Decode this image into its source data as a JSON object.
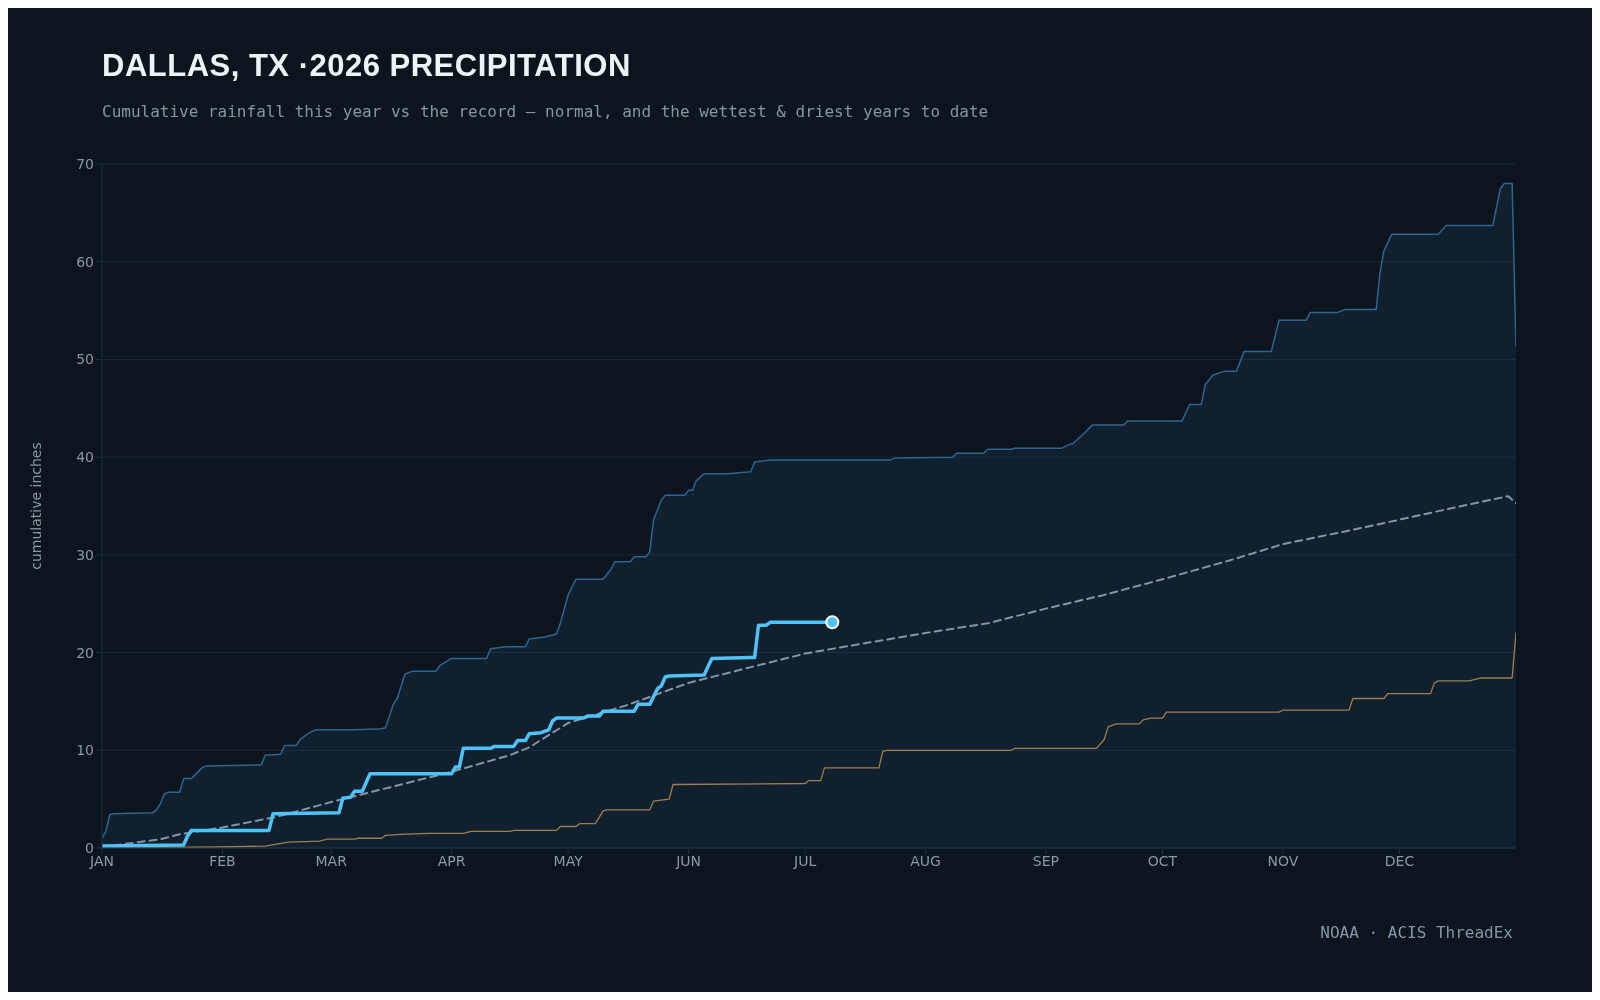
{
  "chart_data": {
    "type": "line",
    "title": "DALLAS, TX ·2026 PRECIPITATION",
    "subtitle": "Cumulative rainfall this year vs the record — normal, and the wettest & driest years to date",
    "ylabel": "cumulative inches",
    "xlim": [
      "--01-01",
      "--12-31"
    ],
    "xticks": [
      {
        "value": "--01-01",
        "label": "JAN"
      },
      {
        "value": "--02-01",
        "label": "FEB"
      },
      {
        "value": "--03-01",
        "label": "MAR"
      },
      {
        "value": "--04-01",
        "label": "APR"
      },
      {
        "value": "--05-01",
        "label": "MAY"
      },
      {
        "value": "--06-01",
        "label": "JUN"
      },
      {
        "value": "--07-01",
        "label": "JUL"
      },
      {
        "value": "--08-01",
        "label": "AUG"
      },
      {
        "value": "--09-01",
        "label": "SEP"
      },
      {
        "value": "--10-01",
        "label": "OCT"
      },
      {
        "value": "--11-01",
        "label": "NOV"
      },
      {
        "value": "--12-01",
        "label": "DEC"
      }
    ],
    "ylim": [
      0,
      70
    ],
    "yticks": [
      0,
      10,
      20,
      30,
      40,
      50,
      60,
      70
    ],
    "grid": "y",
    "legend": false,
    "annotations": [
      "NOAA · ACIS ThreadEx"
    ],
    "series": [
      {
        "type": "area",
        "color": "#2d6592",
        "marker": "none",
        "line_style": "solid",
        "x": [
          "--01-01",
          "--01-02",
          "--01-03",
          "--01-04",
          "--01-14",
          "--01-15",
          "--01-16",
          "--01-17",
          "--01-18",
          "--01-21",
          "--01-22",
          "--01-24",
          "--01-27",
          "--01-28",
          "--02-11",
          "--02-12",
          "--02-16",
          "--02-17",
          "--02-20",
          "--02-21",
          "--02-23",
          "--02-25",
          "--03-07",
          "--03-14",
          "--03-15",
          "--03-17",
          "--03-18",
          "--03-20",
          "--03-22",
          "--03-28",
          "--03-29",
          "--04-01",
          "--04-10",
          "--04-11",
          "--04-15",
          "--04-20",
          "--04-21",
          "--04-25",
          "--04-28",
          "--04-29",
          "--05-01",
          "--05-03",
          "--05-10",
          "--05-12",
          "--05-13",
          "--05-17",
          "--05-18",
          "--05-21",
          "--05-22",
          "--05-23",
          "--05-25",
          "--05-26",
          "--05-31",
          "--06-01",
          "--06-02",
          "--06-03",
          "--06-05",
          "--06-11",
          "--06-17",
          "--06-18",
          "--06-22",
          "--07-23",
          "--07-24",
          "--08-08",
          "--08-09",
          "--08-16",
          "--08-17",
          "--08-23",
          "--08-24",
          "--09-05",
          "--09-07",
          "--09-08",
          "--09-11",
          "--09-13",
          "--09-21",
          "--09-22",
          "--10-06",
          "--10-08",
          "--10-11",
          "--10-12",
          "--10-14",
          "--10-17",
          "--10-20",
          "--10-22",
          "--10-29",
          "--10-31",
          "--11-07",
          "--11-08",
          "--11-15",
          "--11-17",
          "--11-25",
          "--11-26",
          "--11-27",
          "--11-29",
          "--12-11",
          "--12-13",
          "--12-25",
          "--12-26",
          "--12-27",
          "--12-28",
          "--12-30",
          "--12-31"
        ],
        "values": [
          1.0,
          1.7,
          3.4,
          3.5,
          3.6,
          3.9,
          4.5,
          5.5,
          5.7,
          5.7,
          7.1,
          7.1,
          8.3,
          8.4,
          8.5,
          9.5,
          9.6,
          10.5,
          10.5,
          11.1,
          11.7,
          12.1,
          12.1,
          12.2,
          12.3,
          14.7,
          15.3,
          17.8,
          18.1,
          18.1,
          18.7,
          19.4,
          19.4,
          20.4,
          20.6,
          20.6,
          21.4,
          21.6,
          21.9,
          23.0,
          25.9,
          27.5,
          27.5,
          28.5,
          29.3,
          29.3,
          29.8,
          29.8,
          30.3,
          33.6,
          35.6,
          36.1,
          36.1,
          36.6,
          36.6,
          37.6,
          38.3,
          38.3,
          38.5,
          39.5,
          39.7,
          39.7,
          39.9,
          40.0,
          40.4,
          40.4,
          40.8,
          40.8,
          40.9,
          40.9,
          41.3,
          41.4,
          42.5,
          43.3,
          43.3,
          43.7,
          43.7,
          45.4,
          45.4,
          47.4,
          48.4,
          48.8,
          48.8,
          50.8,
          50.8,
          54.0,
          54.0,
          54.8,
          54.8,
          55.1,
          55.1,
          58.9,
          61.1,
          62.8,
          62.8,
          63.7,
          63.7,
          65.6,
          67.5,
          68.0,
          68.0,
          51.3
        ]
      },
      {
        "color": "#9c7f4c",
        "marker": "none",
        "line_style": "solid",
        "x": [
          "--01-01",
          "--01-31",
          "--02-12",
          "--02-18",
          "--02-26",
          "--02-28",
          "--03-07",
          "--03-08",
          "--03-14",
          "--03-15",
          "--03-19",
          "--03-26",
          "--04-04",
          "--04-06",
          "--04-16",
          "--04-17",
          "--04-28",
          "--04-29",
          "--05-03",
          "--05-04",
          "--05-08",
          "--05-10",
          "--05-11",
          "--05-22",
          "--05-23",
          "--05-27",
          "--05-28",
          "--07-01",
          "--07-02",
          "--07-05",
          "--07-06",
          "--07-20",
          "--07-21",
          "--07-22",
          "--08-23",
          "--08-24",
          "--09-14",
          "--09-16",
          "--09-17",
          "--09-19",
          "--09-25",
          "--09-26",
          "--09-28",
          "--10-01",
          "--10-02",
          "--10-31",
          "--11-01",
          "--11-18",
          "--11-19",
          "--11-27",
          "--11-28",
          "--12-09",
          "--12-10",
          "--12-11",
          "--12-19",
          "--12-22",
          "--12-30",
          "--12-31"
        ],
        "values": [
          0,
          0.1,
          0.2,
          0.6,
          0.7,
          0.9,
          0.9,
          1.0,
          1.0,
          1.3,
          1.4,
          1.5,
          1.5,
          1.7,
          1.7,
          1.8,
          1.8,
          2.2,
          2.2,
          2.5,
          2.5,
          3.8,
          3.9,
          3.9,
          4.8,
          5.0,
          6.5,
          6.6,
          6.9,
          6.9,
          8.2,
          8.2,
          9.9,
          10.0,
          10.0,
          10.2,
          10.2,
          11.1,
          12.4,
          12.7,
          12.7,
          13.1,
          13.3,
          13.3,
          13.9,
          13.9,
          14.1,
          14.1,
          15.3,
          15.3,
          15.8,
          15.8,
          16.9,
          17.1,
          17.1,
          17.4,
          17.4,
          22.0
        ]
      },
      {
        "color": "#8595a6",
        "marker": "none",
        "line_style": "dashed",
        "x": [
          "--01-01",
          "--01-16",
          "--01-21",
          "--02-01",
          "--02-15",
          "--03-01",
          "--03-17",
          "--04-01",
          "--04-16",
          "--04-21",
          "--05-01",
          "--05-16",
          "--06-01",
          "--06-15",
          "--07-01",
          "--07-17",
          "--08-01",
          "--08-17",
          "--09-01",
          "--09-16",
          "--10-01",
          "--10-18",
          "--11-01",
          "--11-17",
          "--12-01",
          "--12-17",
          "--12-29",
          "--12-31"
        ],
        "values": [
          0.1,
          0.9,
          1.4,
          2.1,
          3.2,
          4.7,
          6.3,
          7.8,
          9.5,
          10.3,
          12.8,
          14.6,
          16.9,
          18.3,
          19.9,
          21.0,
          22.0,
          23.0,
          24.5,
          25.9,
          27.5,
          29.4,
          31.1,
          32.4,
          33.6,
          35.0,
          36.0,
          35.3
        ]
      },
      {
        "color": "#4fc3f7",
        "marker": "none",
        "line_style": "solid",
        "x": [
          "--01-01",
          "--01-22",
          "--01-23",
          "--01-24",
          "--02-13",
          "--02-14",
          "--03-03",
          "--03-04",
          "--03-06",
          "--03-07",
          "--03-09",
          "--03-11",
          "--04-01",
          "--04-02",
          "--04-03",
          "--04-04",
          "--04-11",
          "--04-12",
          "--04-17",
          "--04-18",
          "--04-20",
          "--04-21",
          "--04-24",
          "--04-26",
          "--04-27",
          "--04-28",
          "--05-05",
          "--05-06",
          "--05-09",
          "--05-10",
          "--05-18",
          "--05-19",
          "--05-22",
          "--05-24",
          "--05-25",
          "--05-26",
          "--05-27",
          "--06-05",
          "--06-07",
          "--06-17",
          "--06-18",
          "--06-19",
          "--06-21",
          "--06-22",
          "--07-08"
        ],
        "values": [
          0.2,
          0.3,
          1.2,
          1.8,
          1.8,
          3.5,
          3.6,
          5.1,
          5.2,
          5.8,
          5.8,
          7.6,
          7.6,
          8.3,
          8.3,
          10.2,
          10.2,
          10.4,
          10.4,
          11.0,
          11.0,
          11.7,
          11.8,
          12.1,
          13.0,
          13.3,
          13.3,
          13.5,
          13.5,
          14.0,
          14.0,
          14.7,
          14.7,
          16.3,
          16.6,
          17.5,
          17.6,
          17.7,
          19.4,
          19.5,
          19.5,
          22.8,
          22.8,
          23.1,
          23.1
        ]
      },
      {
        "type": "scatter",
        "color": "#4fc3f7",
        "marker": "circle",
        "x": [
          "--07-08"
        ],
        "values": [
          23.1
        ]
      }
    ]
  }
}
